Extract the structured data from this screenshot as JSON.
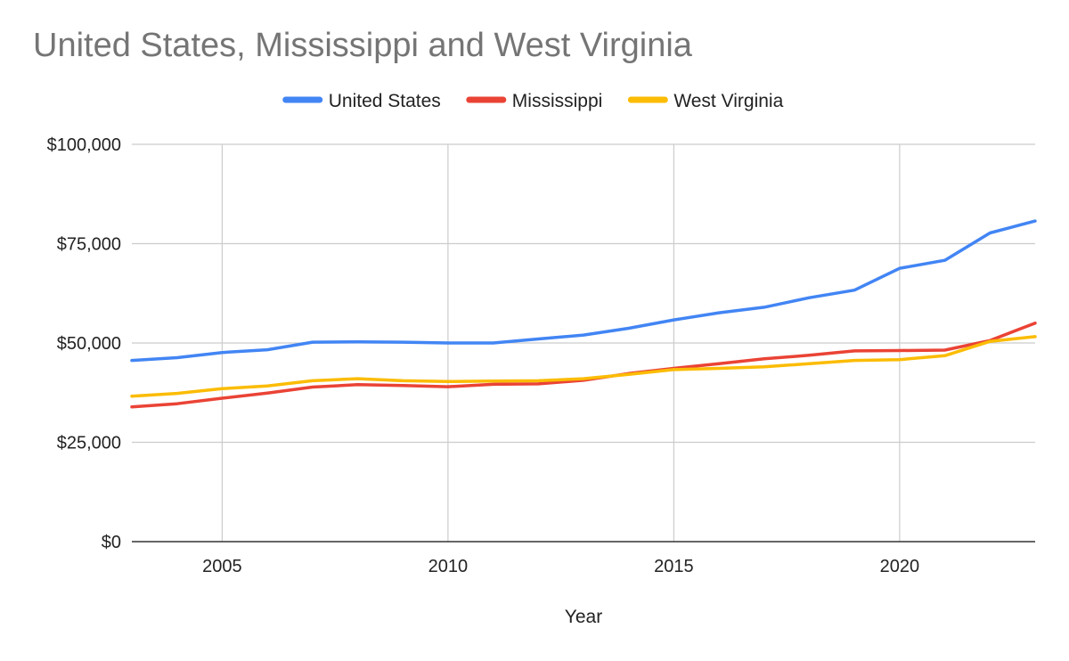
{
  "chart_data": {
    "type": "line",
    "title": "United States, Mississippi and West Virginia",
    "xlabel": "Year",
    "ylabel": "",
    "x": [
      2003,
      2004,
      2005,
      2006,
      2007,
      2008,
      2009,
      2010,
      2011,
      2012,
      2013,
      2014,
      2015,
      2016,
      2017,
      2018,
      2019,
      2020,
      2021,
      2022,
      2023
    ],
    "xlim": [
      2003,
      2023
    ],
    "ylim": [
      0,
      100000
    ],
    "x_ticks": [
      {
        "value": 2005,
        "label": "2005"
      },
      {
        "value": 2010,
        "label": "2010"
      },
      {
        "value": 2015,
        "label": "2015"
      },
      {
        "value": 2020,
        "label": "2020"
      }
    ],
    "y_ticks": [
      {
        "value": 0,
        "label": "$0"
      },
      {
        "value": 25000,
        "label": "$25,000"
      },
      {
        "value": 50000,
        "label": "$50,000"
      },
      {
        "value": 75000,
        "label": "$75,000"
      },
      {
        "value": 100000,
        "label": "$100,000"
      }
    ],
    "grid": true,
    "legend_position": "top",
    "series": [
      {
        "name": "United States",
        "color": "#4285f4",
        "values": [
          45600,
          46300,
          47600,
          48300,
          50200,
          50300,
          50200,
          50000,
          50000,
          51000,
          52000,
          53700,
          55800,
          57600,
          59000,
          61400,
          63300,
          68800,
          70800,
          77700,
          80700
        ]
      },
      {
        "name": "Mississippi",
        "color": "#ea4335",
        "values": [
          33900,
          34700,
          36100,
          37400,
          38900,
          39500,
          39300,
          39000,
          39600,
          39700,
          40600,
          42300,
          43600,
          44800,
          46000,
          46900,
          48000,
          48100,
          48200,
          50600,
          55000
        ]
      },
      {
        "name": "West Virginia",
        "color": "#fbbc04",
        "values": [
          36600,
          37300,
          38500,
          39200,
          40500,
          41000,
          40500,
          40300,
          40400,
          40500,
          41000,
          42100,
          43300,
          43600,
          44000,
          44800,
          45600,
          45800,
          46800,
          50400,
          51600
        ]
      }
    ]
  }
}
